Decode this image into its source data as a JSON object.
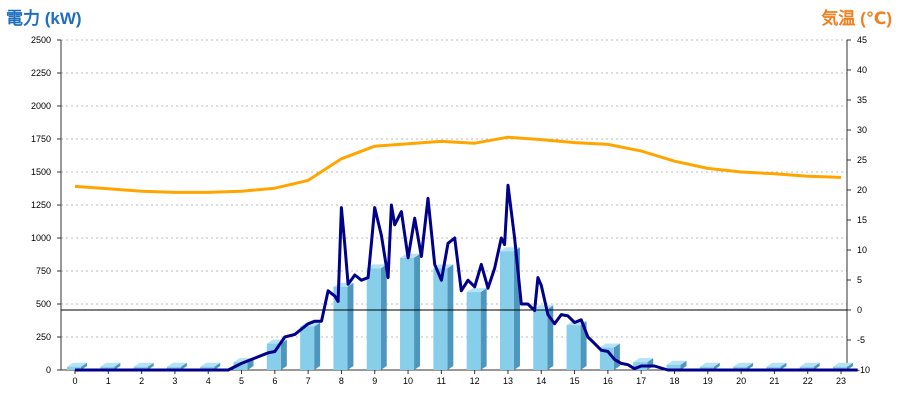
{
  "chart_data": {
    "type": "bar",
    "left_axis_label": "電力 (kW)",
    "right_axis_label": "気温 (℃)",
    "left_ylim": [
      0,
      2500
    ],
    "right_ylim": [
      -10,
      45
    ],
    "left_ticks": [
      "0",
      "250",
      "500",
      "750",
      "1000",
      "1250",
      "1500",
      "1750",
      "2000",
      "2250",
      "2500"
    ],
    "right_ticks": [
      "-10",
      "-5",
      "0",
      "5",
      "10",
      "15",
      "20",
      "25",
      "30",
      "35",
      "40",
      "45"
    ],
    "categories": [
      "0",
      "1",
      "2",
      "3",
      "4",
      "5",
      "6",
      "7",
      "8",
      "9",
      "10",
      "11",
      "12",
      "13",
      "14",
      "15",
      "16",
      "17",
      "18",
      "19",
      "20",
      "21",
      "22",
      "23"
    ],
    "grid": true,
    "colors": {
      "bars": "#87ceeb",
      "bars_side": "#4f96bd",
      "power_line": "#00008b",
      "temperature_line": "#ffa500",
      "left_title": "#1f6fc0",
      "right_title": "#f08020",
      "grid": "#bbbbbb"
    },
    "series": [
      {
        "type": "bar",
        "axis": "left",
        "values": [
          25,
          25,
          25,
          25,
          25,
          60,
          200,
          330,
          630,
          770,
          850,
          770,
          590,
          900,
          460,
          340,
          170,
          60,
          40,
          25,
          25,
          25,
          25,
          25
        ]
      },
      {
        "type": "line",
        "axis": "left",
        "x": [
          0,
          4.6,
          5.0,
          5.4,
          5.8,
          6.0,
          6.3,
          6.6,
          7.0,
          7.2,
          7.4,
          7.6,
          7.8,
          7.9,
          8.0,
          8.1,
          8.2,
          8.4,
          8.6,
          8.8,
          8.9,
          9.0,
          9.2,
          9.4,
          9.5,
          9.6,
          9.8,
          10.0,
          10.2,
          10.4,
          10.6,
          10.8,
          11.0,
          11.2,
          11.4,
          11.6,
          11.8,
          12.0,
          12.2,
          12.4,
          12.6,
          12.8,
          12.9,
          13.0,
          13.2,
          13.4,
          13.6,
          13.8,
          13.9,
          14.0,
          14.2,
          14.4,
          14.6,
          14.8,
          15.0,
          15.2,
          15.4,
          15.6,
          15.8,
          16.0,
          16.2,
          16.4,
          16.6,
          16.8,
          17.0,
          17.4,
          17.8,
          23.5
        ],
        "y": [
          0,
          0,
          50,
          90,
          130,
          140,
          250,
          270,
          350,
          370,
          370,
          600,
          560,
          520,
          1230,
          950,
          650,
          720,
          680,
          700,
          960,
          1230,
          1020,
          700,
          1250,
          1100,
          1200,
          850,
          1150,
          860,
          1300,
          800,
          680,
          960,
          1000,
          600,
          680,
          630,
          800,
          620,
          770,
          1000,
          950,
          1400,
          1000,
          500,
          500,
          450,
          700,
          640,
          420,
          350,
          420,
          410,
          360,
          380,
          250,
          200,
          150,
          140,
          80,
          50,
          40,
          10,
          30,
          30,
          0,
          0
        ]
      },
      {
        "type": "line",
        "axis": "right",
        "x": [
          0,
          1,
          2,
          3,
          4,
          5,
          6,
          7,
          8,
          9,
          10,
          11,
          12,
          13,
          14,
          15,
          16,
          17,
          18,
          19,
          20,
          21,
          22,
          23
        ],
        "y": [
          20.6,
          20.2,
          19.8,
          19.6,
          19.6,
          19.8,
          20.3,
          21.6,
          25.2,
          27.3,
          27.7,
          28.1,
          27.8,
          28.8,
          28.4,
          27.9,
          27.6,
          26.5,
          24.8,
          23.6,
          23.0,
          22.7,
          22.3,
          22.1
        ]
      }
    ]
  }
}
